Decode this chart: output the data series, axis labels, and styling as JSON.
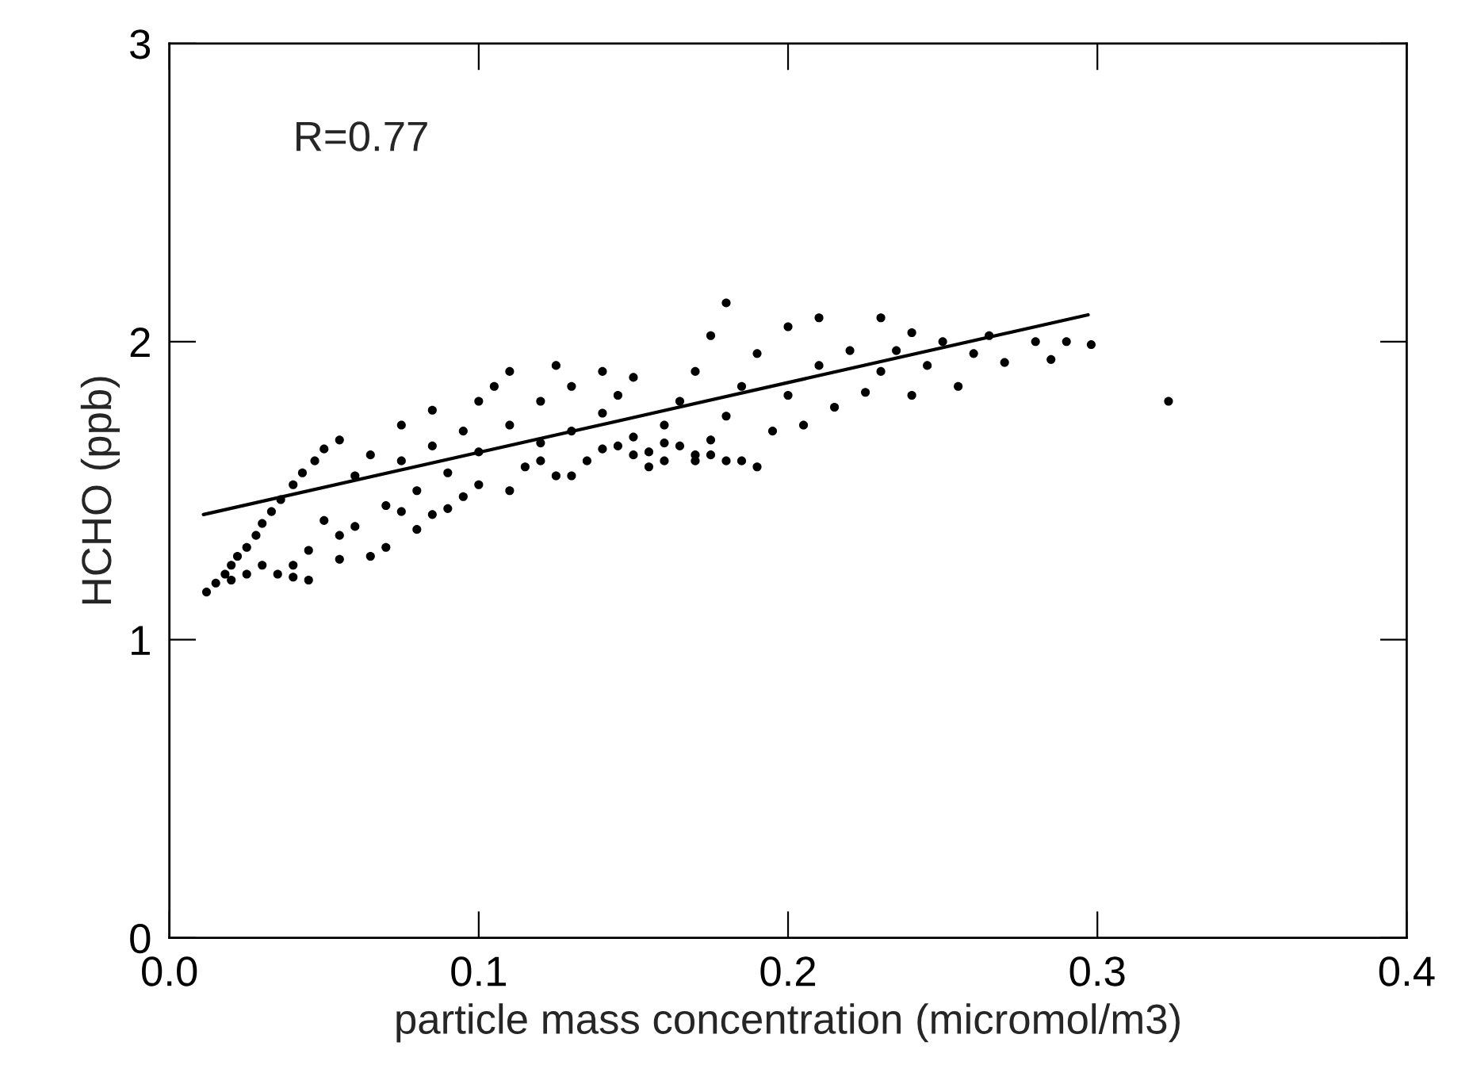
{
  "chart_data": {
    "type": "scatter",
    "xlabel": "particle mass concentration (micromol/m3)",
    "ylabel": "HCHO (ppb)",
    "annotations": [
      "R=0.77"
    ],
    "xlim": [
      0,
      0.4
    ],
    "xticks": [
      {
        "value": 0,
        "label": "0.0"
      },
      0.1,
      0.2,
      0.3,
      0.4
    ],
    "ylim": [
      0,
      3
    ],
    "yticks": [
      0,
      1,
      2,
      3
    ],
    "grid": false,
    "series": [
      {
        "color": "#000000",
        "marker": "circle",
        "x": [
          0.012,
          0.015,
          0.018,
          0.02,
          0.022,
          0.025,
          0.028,
          0.03,
          0.033,
          0.036,
          0.04,
          0.043,
          0.047,
          0.05,
          0.055,
          0.02,
          0.025,
          0.03,
          0.035,
          0.04,
          0.045,
          0.05,
          0.055,
          0.06,
          0.06,
          0.065,
          0.07,
          0.07,
          0.075,
          0.075,
          0.08,
          0.08,
          0.085,
          0.085,
          0.09,
          0.09,
          0.095,
          0.1,
          0.1,
          0.1,
          0.105,
          0.11,
          0.11,
          0.11,
          0.115,
          0.12,
          0.12,
          0.125,
          0.125,
          0.13,
          0.13,
          0.135,
          0.14,
          0.14,
          0.145,
          0.145,
          0.15,
          0.15,
          0.155,
          0.155,
          0.16,
          0.16,
          0.165,
          0.165,
          0.17,
          0.17,
          0.175,
          0.175,
          0.18,
          0.18,
          0.18,
          0.185,
          0.185,
          0.19,
          0.19,
          0.195,
          0.2,
          0.2,
          0.205,
          0.21,
          0.21,
          0.215,
          0.22,
          0.225,
          0.23,
          0.23,
          0.235,
          0.24,
          0.24,
          0.245,
          0.25,
          0.255,
          0.26,
          0.265,
          0.27,
          0.28,
          0.285,
          0.29,
          0.298,
          0.323,
          0.04,
          0.045,
          0.055,
          0.065,
          0.075,
          0.085,
          0.095,
          0.12,
          0.13,
          0.14,
          0.15,
          0.16,
          0.17,
          0.175
        ],
        "values": [
          1.16,
          1.19,
          1.22,
          1.25,
          1.28,
          1.31,
          1.35,
          1.39,
          1.43,
          1.47,
          1.52,
          1.56,
          1.6,
          1.64,
          1.67,
          1.2,
          1.22,
          1.25,
          1.22,
          1.21,
          1.3,
          1.4,
          1.27,
          1.38,
          1.55,
          1.62,
          1.31,
          1.45,
          1.6,
          1.72,
          1.5,
          1.37,
          1.65,
          1.77,
          1.44,
          1.56,
          1.7,
          1.52,
          1.8,
          1.63,
          1.85,
          1.5,
          1.72,
          1.9,
          1.58,
          1.66,
          1.8,
          1.92,
          1.55,
          1.7,
          1.85,
          1.6,
          1.76,
          1.9,
          1.65,
          1.82,
          1.68,
          1.88,
          1.63,
          1.58,
          1.72,
          1.66,
          1.8,
          1.65,
          1.62,
          1.9,
          1.67,
          2.02,
          1.6,
          1.75,
          2.13,
          1.85,
          1.6,
          1.58,
          1.96,
          1.7,
          1.82,
          2.05,
          1.72,
          1.92,
          2.08,
          1.78,
          1.97,
          1.83,
          2.08,
          1.9,
          1.97,
          1.82,
          2.03,
          1.92,
          2.0,
          1.85,
          1.96,
          2.02,
          1.93,
          2.0,
          1.94,
          2.0,
          1.99,
          1.8,
          1.25,
          1.2,
          1.35,
          1.28,
          1.43,
          1.42,
          1.48,
          1.6,
          1.55,
          1.64,
          1.62,
          1.6,
          1.6,
          1.62
        ]
      },
      {
        "type": "line",
        "color": "#000000",
        "x": [
          0.011,
          0.297
        ],
        "values": [
          1.42,
          2.09
        ]
      }
    ]
  }
}
